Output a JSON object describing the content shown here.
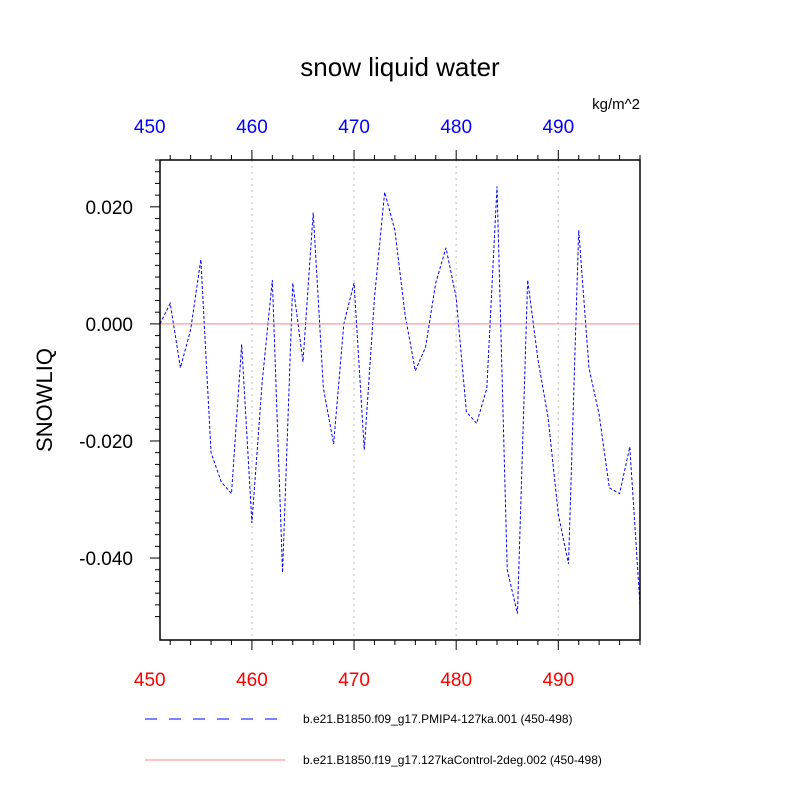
{
  "chart_data": {
    "type": "line",
    "title": "snow liquid water",
    "units_label": "kg/m^2",
    "ylabel": "SNOWLIQ",
    "xlabel": "",
    "xlim": [
      451,
      498
    ],
    "ylim": [
      -0.054,
      0.028
    ],
    "x_ticks": [
      450,
      460,
      470,
      480,
      490
    ],
    "y_ticks": [
      0.02,
      0.0,
      -0.02,
      -0.04
    ],
    "y_tick_labels": [
      "0.020",
      "0.000",
      "-0.020",
      "-0.040"
    ],
    "bottom_tick_color": "#ff0000",
    "top_tick_color": "#0000ff",
    "grid": "vertical dotted at major x ticks",
    "legend_position": "bottom",
    "series": [
      {
        "name": "b.e21.B1850.f09_g17.PMIP4-127ka.001 (450-498)",
        "color": "#0000ff",
        "style": "dashed",
        "x": [
          451,
          452,
          453,
          454,
          455,
          456,
          457,
          458,
          459,
          460,
          461,
          462,
          463,
          464,
          465,
          466,
          467,
          468,
          469,
          470,
          471,
          472,
          473,
          474,
          475,
          476,
          477,
          478,
          479,
          480,
          481,
          482,
          483,
          484,
          485,
          486,
          487,
          488,
          489,
          490,
          491,
          492,
          493,
          494,
          495,
          496,
          497,
          498
        ],
        "y": [
          0.0,
          0.0035,
          -0.0075,
          -0.001,
          0.011,
          -0.022,
          -0.027,
          -0.029,
          -0.0035,
          -0.034,
          -0.01,
          0.0075,
          -0.0425,
          0.007,
          -0.0065,
          0.019,
          -0.011,
          -0.0205,
          0.0,
          0.007,
          -0.0215,
          0.0045,
          0.0225,
          0.016,
          0.0015,
          -0.008,
          -0.004,
          0.007,
          0.013,
          0.0045,
          -0.015,
          -0.017,
          -0.011,
          0.0235,
          -0.042,
          -0.0495,
          0.0075,
          -0.006,
          -0.016,
          -0.0325,
          -0.041,
          0.016,
          -0.0075,
          -0.0155,
          -0.028,
          -0.029,
          -0.021,
          -0.048
        ]
      },
      {
        "name": "b.e21.B1850.f19_g17.127kaControl-2deg.002 (450-498)",
        "color": "#ff8080",
        "style": "solid",
        "x": [
          451,
          498
        ],
        "y": [
          0.0,
          0.0
        ]
      }
    ]
  }
}
